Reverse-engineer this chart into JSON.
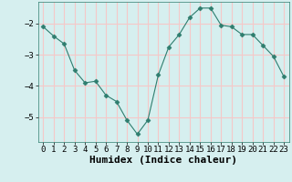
{
  "x": [
    0,
    1,
    2,
    3,
    4,
    5,
    6,
    7,
    8,
    9,
    10,
    11,
    12,
    13,
    14,
    15,
    16,
    17,
    18,
    19,
    20,
    21,
    22,
    23
  ],
  "y": [
    -2.1,
    -2.4,
    -2.65,
    -3.5,
    -3.9,
    -3.85,
    -4.3,
    -4.5,
    -5.1,
    -5.55,
    -5.1,
    -3.65,
    -2.75,
    -2.35,
    -1.8,
    -1.5,
    -1.5,
    -2.05,
    -2.1,
    -2.35,
    -2.35,
    -2.7,
    -3.05,
    -3.7
  ],
  "line_color": "#2e7d6e",
  "marker": "D",
  "marker_size": 2.5,
  "bg_color": "#d6efef",
  "grid_color": "#f5c8c8",
  "xlabel": "Humidex (Indice chaleur)",
  "xlabel_fontsize": 8,
  "ylim": [
    -5.8,
    -1.3
  ],
  "xlim": [
    -0.5,
    23.5
  ],
  "yticks": [
    -5,
    -4,
    -3,
    -2
  ],
  "xticks": [
    0,
    1,
    2,
    3,
    4,
    5,
    6,
    7,
    8,
    9,
    10,
    11,
    12,
    13,
    14,
    15,
    16,
    17,
    18,
    19,
    20,
    21,
    22,
    23
  ],
  "tick_fontsize": 6.5,
  "linewidth": 0.8
}
